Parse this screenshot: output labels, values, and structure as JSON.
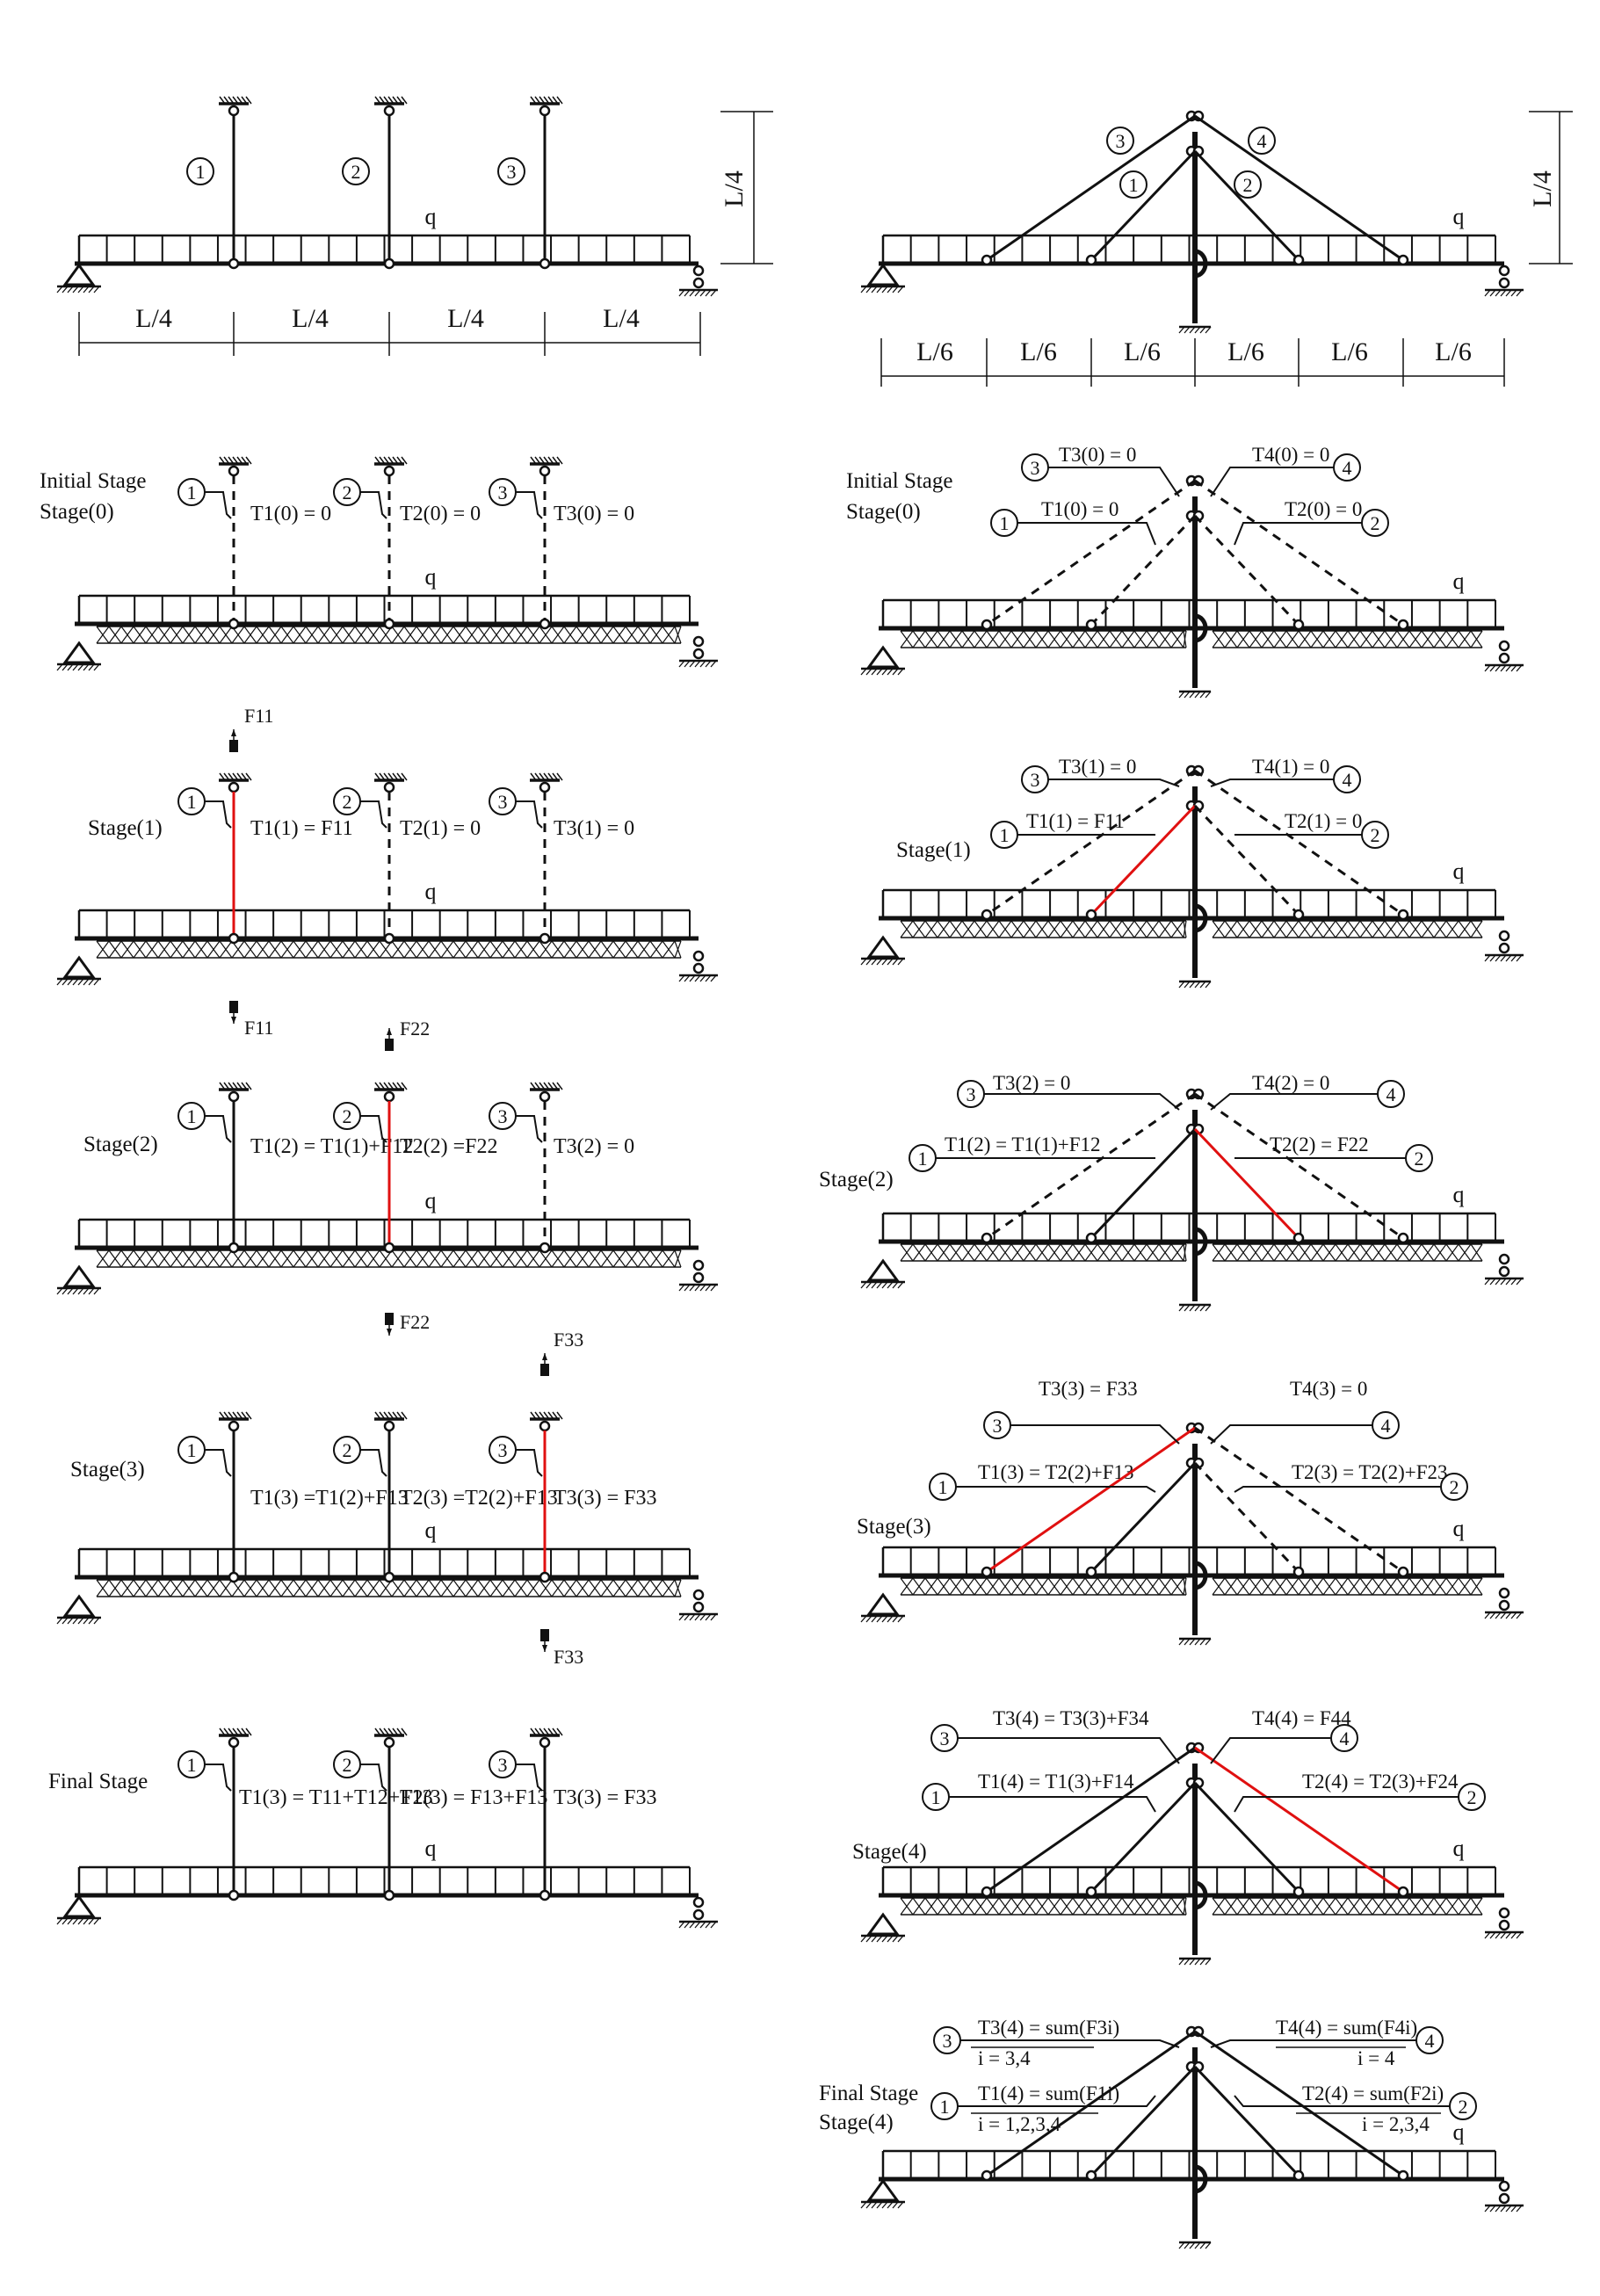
{
  "colors": {
    "line": "#111111",
    "highlight": "#e01010",
    "background": "#ffffff"
  },
  "circle_digits": [
    "1",
    "2",
    "3",
    "4"
  ],
  "load_label": "q",
  "dimensions": {
    "height": "L/4",
    "left_spans": "L/4",
    "right_spans": "L/6"
  },
  "stage_labels": {
    "initial_1": "Initial Stage",
    "initial_2": "Stage(0)",
    "stage1": "Stage(1)",
    "stage2": "Stage(2)",
    "stage3": "Stage(3)",
    "stage4": "Stage(4)",
    "final": "Final Stage",
    "final_2": "Stage(4)"
  },
  "forces": {
    "F11": "F11",
    "F22": "F22",
    "F33": "F33"
  },
  "left_panels": {
    "stage0": {
      "h1": "T1(0) = 0",
      "h2": "T2(0) = 0",
      "h3": "T3(0) = 0"
    },
    "stage1": {
      "h1": "T1(1) = F11",
      "h2": "T2(1) = 0",
      "h3": "T3(1) = 0"
    },
    "stage2": {
      "h1": "T1(2) = T1(1)+F12",
      "h2": "T2(2) =F22",
      "h3": "T3(2) = 0"
    },
    "stage3": {
      "h1": "T1(3) =T1(2)+F13",
      "h2": "T2(3) =T2(2)+F13",
      "h3": "T3(3) = F33"
    },
    "final": {
      "h1": "T1(3) = T11+T12+F13",
      "h2": "T2(3) = F13+F13",
      "h3": "T3(3) = F33"
    }
  },
  "right_panels": {
    "stage0": {
      "c1": "T1(0) = 0",
      "c2": "T2(0) = 0",
      "c3": "T3(0) = 0",
      "c4": "T4(0) = 0"
    },
    "stage1": {
      "c1": "T1(1) = F11",
      "c2": "T2(1) = 0",
      "c3": "T3(1) = 0",
      "c4": "T4(1) = 0"
    },
    "stage2": {
      "c1": "T1(2) = T1(1)+F12",
      "c2": "T2(2) = F22",
      "c3": "T3(2) = 0",
      "c4": "T4(2) = 0"
    },
    "stage3": {
      "c1": "T1(3) = T2(2)+F13",
      "c2": "T2(3) = T2(2)+F23",
      "c3": "T3(3) = F33",
      "c4": "T4(3) = 0"
    },
    "stage4": {
      "c1": "T1(4) =  T1(3)+F14",
      "c2": "T2(4) = T2(3)+F24",
      "c3": "T3(4) = T3(3)+F34",
      "c4": "T4(4) = F44"
    },
    "final": {
      "c1": "T1(4) = sum(F1i)",
      "c1_idx": "i = 1,2,3,4",
      "c2": "T2(4) = sum(F2i)",
      "c2_idx": "i = 2,3,4",
      "c3": "T3(4) = sum(F3i)",
      "c3_idx": "i = 3,4",
      "c4": "T4(4) = sum(F4i)",
      "c4_idx": "i = 4"
    }
  }
}
